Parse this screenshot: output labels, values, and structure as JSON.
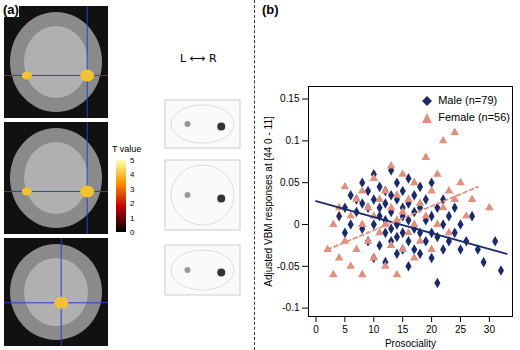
{
  "chart_data": [
    {
      "type": "image",
      "panel_label": "(a)",
      "orientation_label": "L ⟷ R",
      "colorbar": {
        "label": "T value",
        "range": [
          0,
          5
        ],
        "ticks": [
          0,
          1,
          2,
          3,
          4,
          5
        ]
      }
    },
    {
      "type": "scatter",
      "panel_label": "(b)",
      "xlabel": "Prosociality",
      "ylabel": "Adjusted VBM responses at [44 0 - 11]",
      "xlim": [
        -1.3,
        34
      ],
      "ylim": [
        -0.11,
        0.165
      ],
      "xticks": [
        0,
        5,
        10,
        15,
        20,
        25,
        30
      ],
      "yticks": [
        -0.1,
        -0.05,
        0,
        0.05,
        0.1,
        0.15
      ],
      "legend": "top-right",
      "series": [
        {
          "name": "Male (n=79)",
          "color": "#1b2a6b",
          "marker": "diamond",
          "x": [
            4,
            5,
            5,
            6,
            6,
            7,
            7,
            8,
            8,
            8,
            9,
            9,
            9,
            10,
            10,
            10,
            10,
            11,
            11,
            11,
            11,
            12,
            12,
            12,
            12,
            12,
            13,
            13,
            13,
            13,
            13,
            14,
            14,
            14,
            14,
            14,
            15,
            15,
            15,
            15,
            15,
            16,
            16,
            16,
            16,
            16,
            17,
            17,
            17,
            17,
            18,
            18,
            18,
            18,
            19,
            19,
            19,
            20,
            20,
            20,
            20,
            21,
            21,
            21,
            22,
            22,
            22,
            23,
            23,
            24,
            24,
            25,
            25,
            26,
            27,
            28,
            29,
            31,
            32
          ],
          "values": [
            0.01,
            0.02,
            -0.01,
            0.035,
            0.0,
            0.03,
            0.015,
            0.025,
            -0.005,
            0.05,
            0.04,
            0.02,
            -0.02,
            0.06,
            0.03,
            0.0,
            -0.04,
            0.045,
            0.02,
            0.01,
            -0.025,
            0.04,
            0.025,
            0.005,
            -0.01,
            -0.045,
            0.065,
            0.035,
            0.015,
            -0.005,
            -0.02,
            0.05,
            0.03,
            0.0,
            -0.015,
            -0.035,
            0.04,
            0.02,
            0.01,
            -0.01,
            -0.03,
            0.055,
            0.025,
            0.005,
            -0.02,
            -0.05,
            0.035,
            0.015,
            -0.005,
            -0.03,
            0.045,
            0.02,
            -0.01,
            -0.035,
            0.03,
            0.005,
            -0.02,
            0.05,
            0.01,
            -0.01,
            -0.04,
            0.02,
            -0.015,
            -0.07,
            0.03,
            0.0,
            -0.03,
            0.01,
            -0.02,
            0.02,
            -0.01,
            0.0,
            -0.03,
            -0.02,
            0.01,
            -0.03,
            -0.045,
            -0.02,
            -0.055
          ],
          "fit": {
            "x": [
              0,
              33
            ],
            "values": [
              0.028,
              -0.035
            ],
            "line_style": "solid"
          }
        },
        {
          "name": "Female (n=56)",
          "color": "#e0907f",
          "marker": "triangle",
          "x": [
            2,
            3,
            3,
            4,
            4,
            5,
            5,
            6,
            6,
            7,
            7,
            8,
            8,
            8,
            9,
            9,
            10,
            10,
            10,
            11,
            11,
            12,
            12,
            12,
            13,
            13,
            13,
            14,
            14,
            14,
            15,
            15,
            15,
            16,
            16,
            17,
            17,
            17,
            18,
            18,
            19,
            19,
            20,
            20,
            21,
            21,
            22,
            22,
            23,
            23,
            24,
            24,
            25,
            26,
            27,
            30
          ],
          "values": [
            -0.03,
            -0.06,
            0.0,
            -0.04,
            0.02,
            -0.02,
            0.045,
            -0.05,
            0.01,
            -0.03,
            0.03,
            -0.06,
            0.0,
            0.04,
            -0.02,
            0.02,
            -0.04,
            0.01,
            0.055,
            -0.01,
            0.03,
            -0.05,
            0.0,
            0.04,
            -0.025,
            0.02,
            0.07,
            -0.06,
            0.005,
            0.035,
            -0.03,
            0.015,
            0.06,
            -0.01,
            0.03,
            -0.04,
            0.0,
            0.05,
            -0.02,
            0.025,
            0.01,
            0.08,
            -0.03,
            0.04,
            0.0,
            0.06,
            0.02,
            0.1,
            -0.01,
            0.04,
            0.03,
            0.11,
            0.05,
            0.01,
            0.03,
            0.02
          ],
          "fit": {
            "x": [
              2,
              28
            ],
            "values": [
              -0.03,
              0.045
            ],
            "line_style": "dashed"
          }
        }
      ]
    }
  ]
}
